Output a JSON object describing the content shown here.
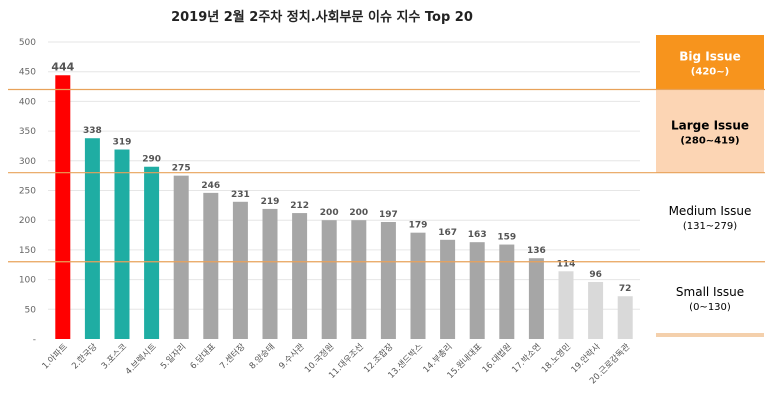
{
  "chart_data": {
    "type": "bar",
    "title": "2019년 2월 2주차 정치.사회부문 이슈 지수 Top 20",
    "xlabel": "",
    "ylabel": "",
    "ylim": [
      0,
      500
    ],
    "yticks": [
      "-",
      "50",
      "100",
      "150",
      "200",
      "250",
      "300",
      "350",
      "400",
      "450",
      "500"
    ],
    "grid": true,
    "categories": [
      "1.아파트",
      "2.한국당",
      "3.포스코",
      "4.브렉시트",
      "5.일자리",
      "6.당대표",
      "7.센터장",
      "8.양승태",
      "9.수사관",
      "10.국정원",
      "11.대우조선",
      "12.조합장",
      "13.샌드박스",
      "14.부총리",
      "15.원내대표",
      "16.대법원",
      "17.박소연",
      "18.노영민",
      "19.안락사",
      "20.근로감독관"
    ],
    "values": [
      444,
      338,
      319,
      290,
      275,
      246,
      231,
      219,
      212,
      200,
      200,
      197,
      179,
      167,
      163,
      159,
      136,
      114,
      96,
      72
    ],
    "bar_colors": [
      "#ff0000",
      "#1fada3",
      "#1fada3",
      "#1fada3",
      "#a6a6a6",
      "#a6a6a6",
      "#a6a6a6",
      "#a6a6a6",
      "#a6a6a6",
      "#a6a6a6",
      "#a6a6a6",
      "#a6a6a6",
      "#a6a6a6",
      "#a6a6a6",
      "#a6a6a6",
      "#a6a6a6",
      "#a6a6a6",
      "#d9d9d9",
      "#d9d9d9",
      "#d9d9d9"
    ],
    "thresholds": [
      420,
      280,
      130
    ],
    "bands": [
      {
        "title": "Big Issue",
        "range": "(420~)",
        "color": "#f7941d",
        "text_color": "#ffffff",
        "value_from": 420,
        "value_to": 500
      },
      {
        "title": "Large Issue",
        "range": "(280~419)",
        "color": "#fcd5b4",
        "text_color": "#000000",
        "value_from": 280,
        "value_to": 419
      },
      {
        "title": "Medium Issue",
        "range": "(131~279)",
        "color": "#ffffff",
        "text_color": "#000000",
        "value_from": 131,
        "value_to": 279
      },
      {
        "title": "Small Issue",
        "range": "(0~130)",
        "color": "#ffffff",
        "text_color": "#000000",
        "value_from": 0,
        "value_to": 130
      }
    ]
  },
  "colors": {
    "threshold_line": "#e8a25a",
    "grid": "#e6e6e6"
  }
}
